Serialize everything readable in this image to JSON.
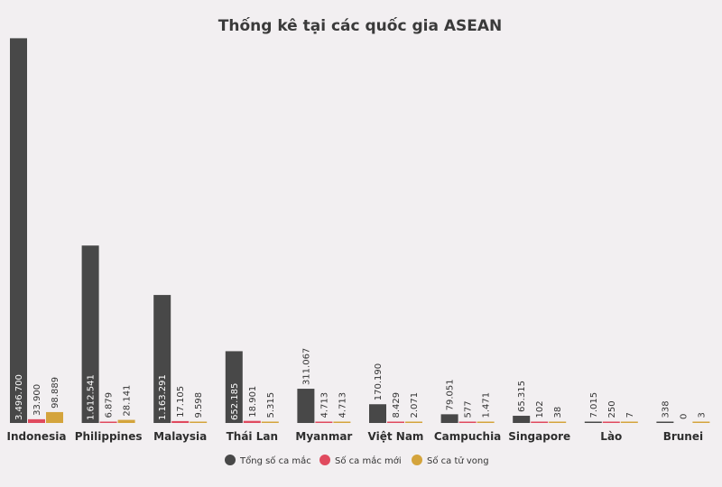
{
  "chart_data": {
    "type": "bar",
    "title": "Thống kê tại các quốc gia ASEAN",
    "categories": [
      "Indonesia",
      "Philippines",
      "Malaysia",
      "Thái Lan",
      "Myanmar",
      "Việt Nam",
      "Campuchia",
      "Singapore",
      "Lào",
      "Brunei"
    ],
    "series": [
      {
        "name": "Tổng số ca mắc",
        "color": "#484848",
        "values": [
          3496700,
          1612541,
          1163291,
          652185,
          311067,
          170190,
          79051,
          65315,
          7015,
          338
        ],
        "labels": [
          "3.496.700",
          "1.612.541",
          "1.163.291",
          "652.185",
          "311.067",
          "170.190",
          "79.051",
          "65.315",
          "7.015",
          "338"
        ]
      },
      {
        "name": "Số ca mắc mới",
        "color": "#e04a5e",
        "values": [
          33900,
          6879,
          17105,
          18901,
          4713,
          8429,
          577,
          102,
          250,
          0
        ],
        "labels": [
          "33.900",
          "6.879",
          "17.105",
          "18.901",
          "4.713",
          "8.429",
          "577",
          "102",
          "250",
          "0"
        ]
      },
      {
        "name": "Số ca tử vong",
        "color": "#d4a43c",
        "values": [
          98889,
          28141,
          9598,
          5315,
          4713,
          2071,
          1471,
          38,
          7,
          3
        ],
        "labels": [
          "98.889",
          "28.141",
          "9.598",
          "5.315",
          "4.713",
          "2.071",
          "1.471",
          "38",
          "7",
          "3"
        ]
      }
    ],
    "ylim": [
      0,
      3500000
    ],
    "grid": false,
    "legend_position": "bottom"
  }
}
